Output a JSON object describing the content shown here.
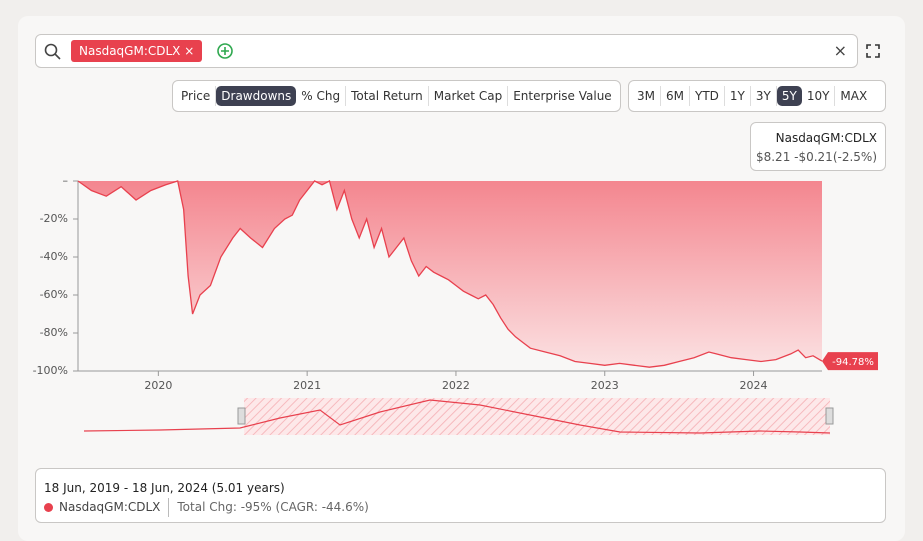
{
  "ui": {
    "search_tag": "NasdaqGM:CDLX",
    "chart_types": [
      "Price",
      "Drawdowns",
      "% Chg",
      "Total Return",
      "Market Cap",
      "Enterprise Value"
    ],
    "chart_type_active": 1,
    "periods": [
      "3M",
      "6M",
      "YTD",
      "1Y",
      "3Y",
      "5Y",
      "10Y",
      "MAX"
    ],
    "period_active": 5,
    "tooltip": {
      "name": "NasdaqGM:CDLX",
      "text": "$8.21 -$0.21(-2.5%)"
    },
    "footer": {
      "range": "18 Jun, 2019 - 18 Jun, 2024 (5.01 years)",
      "name": "NasdaqGM:CDLX",
      "change": "Total Chg: -95% (CAGR: -44.6%)"
    }
  },
  "chart_data": {
    "type": "area",
    "x": [
      2019.46,
      2019.55,
      2019.65,
      2019.75,
      2019.85,
      2019.95,
      2020.05,
      2020.13,
      2020.17,
      2020.2,
      2020.23,
      2020.28,
      2020.35,
      2020.42,
      2020.5,
      2020.55,
      2020.62,
      2020.7,
      2020.78,
      2020.85,
      2020.9,
      2020.95,
      2021.0,
      2021.05,
      2021.1,
      2021.15,
      2021.2,
      2021.25,
      2021.3,
      2021.35,
      2021.4,
      2021.45,
      2021.5,
      2021.55,
      2021.6,
      2021.65,
      2021.7,
      2021.75,
      2021.8,
      2021.85,
      2021.9,
      2021.95,
      2022.0,
      2022.05,
      2022.1,
      2022.15,
      2022.2,
      2022.25,
      2022.3,
      2022.35,
      2022.4,
      2022.45,
      2022.5,
      2022.6,
      2022.7,
      2022.8,
      2022.9,
      2023.0,
      2023.1,
      2023.2,
      2023.3,
      2023.4,
      2023.5,
      2023.6,
      2023.7,
      2023.75,
      2023.85,
      2023.95,
      2024.05,
      2024.15,
      2024.25,
      2024.3,
      2024.35,
      2024.4,
      2024.46
    ],
    "series": [
      {
        "name": "NasdaqGM:CDLX",
        "color": "#e8414e",
        "values": [
          0,
          -5,
          -8,
          -3,
          -10,
          -5,
          -2,
          0,
          -15,
          -50,
          -70,
          -60,
          -55,
          -40,
          -30,
          -25,
          -30,
          -35,
          -25,
          -20,
          -18,
          -10,
          -5,
          0,
          -2,
          0,
          -15,
          -5,
          -20,
          -30,
          -20,
          -35,
          -25,
          -40,
          -35,
          -30,
          -42,
          -50,
          -45,
          -48,
          -50,
          -52,
          -55,
          -58,
          -60,
          -62,
          -60,
          -65,
          -72,
          -78,
          -82,
          -85,
          -88,
          -90,
          -92,
          -95,
          -96,
          -97,
          -96,
          -97,
          -98,
          -97,
          -95,
          -93,
          -90,
          -91,
          -93,
          -94,
          -95,
          -94,
          -91,
          -89,
          -93,
          -92,
          -94.78
        ]
      }
    ],
    "end_label": "-94.78%",
    "xlim": [
      2019.46,
      2024.46
    ],
    "xticks": [
      2020,
      2021,
      2022,
      2023,
      2024
    ],
    "ylim": [
      -100,
      0
    ],
    "yticks": [
      {
        "value": 0,
        "label": "–"
      },
      {
        "value": -20,
        "label": "-20%"
      },
      {
        "value": -40,
        "label": "-40%"
      },
      {
        "value": -60,
        "label": "-60%"
      },
      {
        "value": -80,
        "label": "-80%"
      },
      {
        "value": -100,
        "label": "-100%"
      }
    ]
  }
}
